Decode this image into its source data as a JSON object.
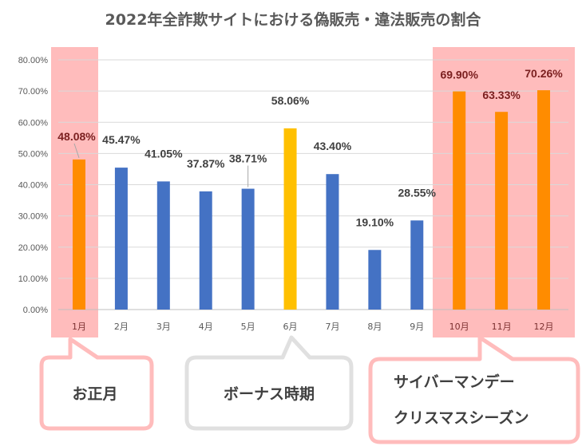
{
  "chart_data": {
    "type": "bar",
    "title": "2022年全詐欺サイトにおける偽販売・違法販売の割合",
    "categories": [
      "1月",
      "2月",
      "3月",
      "4月",
      "5月",
      "6月",
      "7月",
      "8月",
      "9月",
      "10月",
      "11月",
      "12月"
    ],
    "values": [
      48.08,
      45.47,
      41.05,
      37.87,
      38.71,
      58.06,
      43.4,
      19.1,
      28.55,
      69.9,
      63.33,
      70.26
    ],
    "data_labels": [
      "48.08%",
      "45.47%",
      "41.05%",
      "37.87%",
      "38.71%",
      "58.06%",
      "43.40%",
      "19.10%",
      "28.55%",
      "69.90%",
      "63.33%",
      "70.26%"
    ],
    "bar_colors": [
      "#ff8c00",
      "#4472c4",
      "#4472c4",
      "#4472c4",
      "#4472c4",
      "#ffc000",
      "#4472c4",
      "#4472c4",
      "#4472c4",
      "#ff8c00",
      "#ff8c00",
      "#ff8c00"
    ],
    "ylim": [
      0,
      80
    ],
    "yticks": [
      "0.00%",
      "10.00%",
      "20.00%",
      "30.00%",
      "40.00%",
      "50.00%",
      "60.00%",
      "70.00%",
      "80.00%"
    ],
    "grid": true,
    "legend": "none",
    "highlight_color": "#ffbcbc",
    "highlighted_months": [
      "1月",
      "10月",
      "11月",
      "12月"
    ],
    "annotations": [
      {
        "lines": [
          "お正月"
        ],
        "target": "1月",
        "border": "#ffbcbc"
      },
      {
        "lines": [
          "ボーナス時期"
        ],
        "target": "6月",
        "border": "#e0e0e0"
      },
      {
        "lines": [
          "サイバーマンデー",
          "クリスマスシーズン"
        ],
        "target": "10月-12月",
        "border": "#ffbcbc"
      }
    ]
  }
}
